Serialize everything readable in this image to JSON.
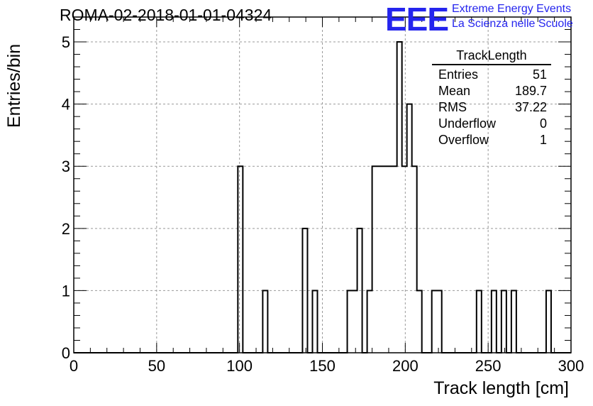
{
  "run_title": "ROMA-02-2018-01-01-04324",
  "logo": {
    "mark": "EEE",
    "line1": "Extreme Energy Events",
    "line2": "La Scienza nelle Scuole",
    "color": "#2525ee"
  },
  "stats_box": {
    "title": "TrackLength",
    "rows": [
      {
        "label": "Entries",
        "value": "51"
      },
      {
        "label": "Mean",
        "value": "189.7"
      },
      {
        "label": "RMS",
        "value": "37.22"
      },
      {
        "label": "Underflow",
        "value": "0"
      },
      {
        "label": "Overflow",
        "value": "1"
      }
    ]
  },
  "chart_data": {
    "type": "histogram",
    "title": "ROMA-02-2018-01-01-04324",
    "xlabel": "Track length [cm]",
    "ylabel": "Entries/bin",
    "xlim": [
      0,
      300
    ],
    "ylim": [
      0,
      5.4
    ],
    "bin_width": 3,
    "x_ticks": [
      0,
      50,
      100,
      150,
      200,
      250,
      300
    ],
    "y_ticks": [
      0,
      1,
      2,
      3,
      4,
      5
    ],
    "grid": true,
    "bins": [
      {
        "x": 99,
        "count": 3
      },
      {
        "x": 114,
        "count": 1
      },
      {
        "x": 138,
        "count": 2
      },
      {
        "x": 144,
        "count": 1
      },
      {
        "x": 165,
        "count": 1
      },
      {
        "x": 168,
        "count": 1
      },
      {
        "x": 171,
        "count": 2
      },
      {
        "x": 177,
        "count": 1
      },
      {
        "x": 180,
        "count": 3
      },
      {
        "x": 183,
        "count": 3
      },
      {
        "x": 186,
        "count": 3
      },
      {
        "x": 189,
        "count": 3
      },
      {
        "x": 192,
        "count": 3
      },
      {
        "x": 195,
        "count": 5
      },
      {
        "x": 198,
        "count": 3
      },
      {
        "x": 201,
        "count": 4
      },
      {
        "x": 204,
        "count": 3
      },
      {
        "x": 207,
        "count": 1
      },
      {
        "x": 216,
        "count": 1
      },
      {
        "x": 219,
        "count": 1
      },
      {
        "x": 243,
        "count": 1
      },
      {
        "x": 251,
        "count": 1
      },
      {
        "x": 258,
        "count": 1
      },
      {
        "x": 264,
        "count": 1
      },
      {
        "x": 285,
        "count": 1
      }
    ]
  }
}
